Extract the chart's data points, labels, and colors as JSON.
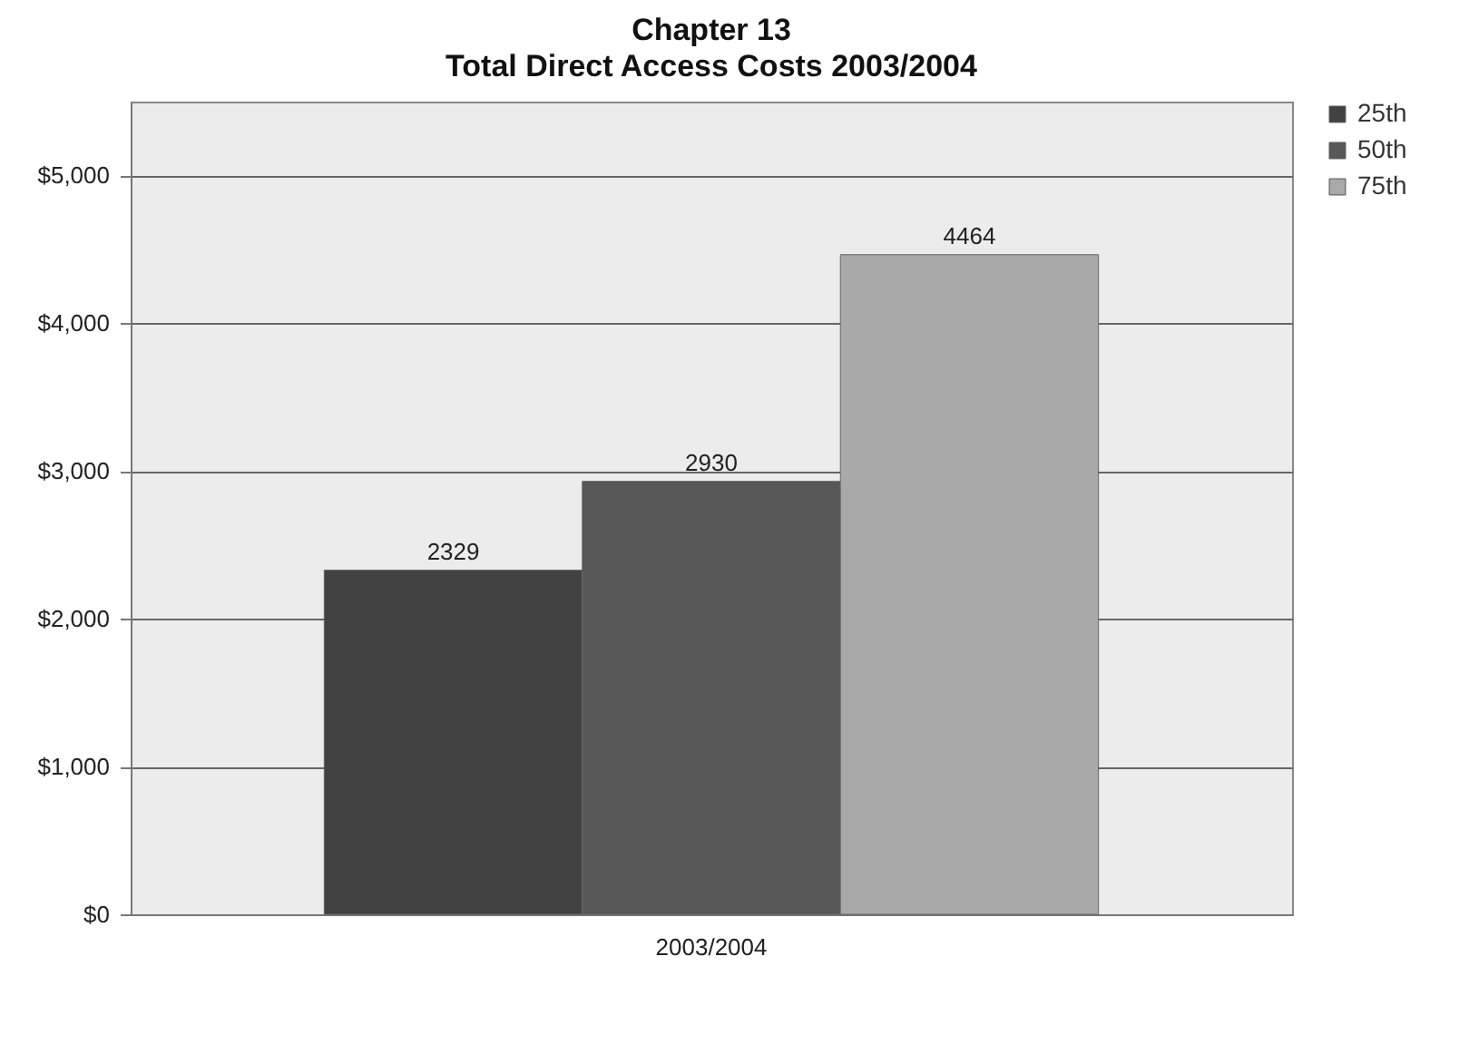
{
  "chart_data": {
    "type": "bar",
    "title": "Chapter 13",
    "subtitle": "Total Direct Access Costs 2003/2004",
    "categories": [
      "2003/2004"
    ],
    "series": [
      {
        "name": "25th",
        "color": "#414141",
        "values": [
          2329
        ]
      },
      {
        "name": "50th",
        "color": "#575757",
        "values": [
          2930
        ]
      },
      {
        "name": "75th",
        "color": "#a9a9a9",
        "values": [
          4464
        ]
      }
    ],
    "ylim": [
      0,
      5500
    ],
    "yticks": [
      {
        "value": 0,
        "label": "$0"
      },
      {
        "value": 1000,
        "label": "$1,000"
      },
      {
        "value": 2000,
        "label": "$2,000"
      },
      {
        "value": 3000,
        "label": "$3,000"
      },
      {
        "value": 4000,
        "label": "$4,000"
      },
      {
        "value": 5000,
        "label": "$5,000"
      }
    ],
    "grid": "y",
    "legend": "right",
    "data_labels": true
  }
}
